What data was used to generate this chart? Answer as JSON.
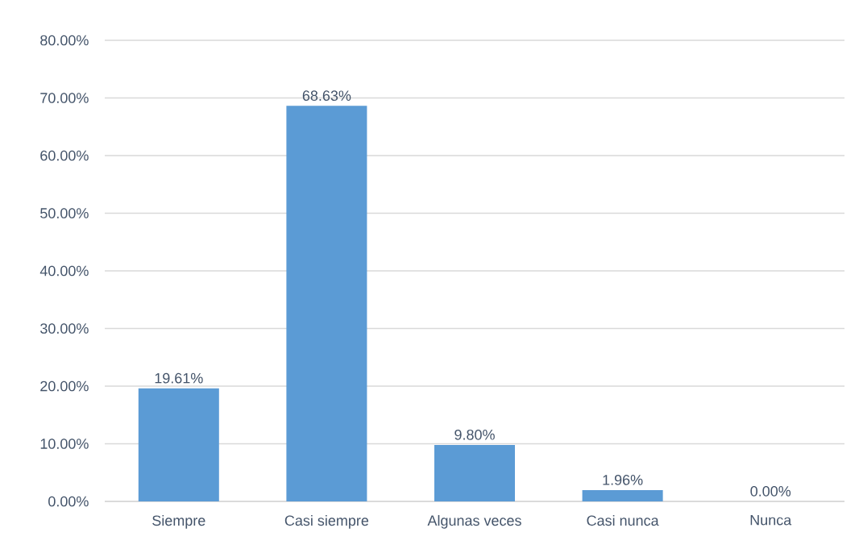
{
  "chart_data": {
    "type": "bar",
    "categories": [
      "Siempre",
      "Casi siempre",
      "Algunas veces",
      "Casi nunca",
      "Nunca"
    ],
    "values": [
      19.61,
      68.63,
      9.8,
      1.96,
      0.0
    ],
    "color": "#5b9bd5",
    "value_labels": [
      "19.61%",
      "68.63%",
      "9.80%",
      "1.96%",
      "0.00%"
    ],
    "ylim": [
      0,
      80
    ],
    "yticks": [
      {
        "value": 0,
        "label": "0.00%"
      },
      {
        "value": 10,
        "label": "10.00%"
      },
      {
        "value": 20,
        "label": "20.00%"
      },
      {
        "value": 30,
        "label": "30.00%"
      },
      {
        "value": 40,
        "label": "40.00%"
      },
      {
        "value": 50,
        "label": "50.00%"
      },
      {
        "value": 60,
        "label": "60.00%"
      },
      {
        "value": 70,
        "label": "70.00%"
      },
      {
        "value": 80,
        "label": "80.00%"
      }
    ],
    "grid": "y"
  }
}
